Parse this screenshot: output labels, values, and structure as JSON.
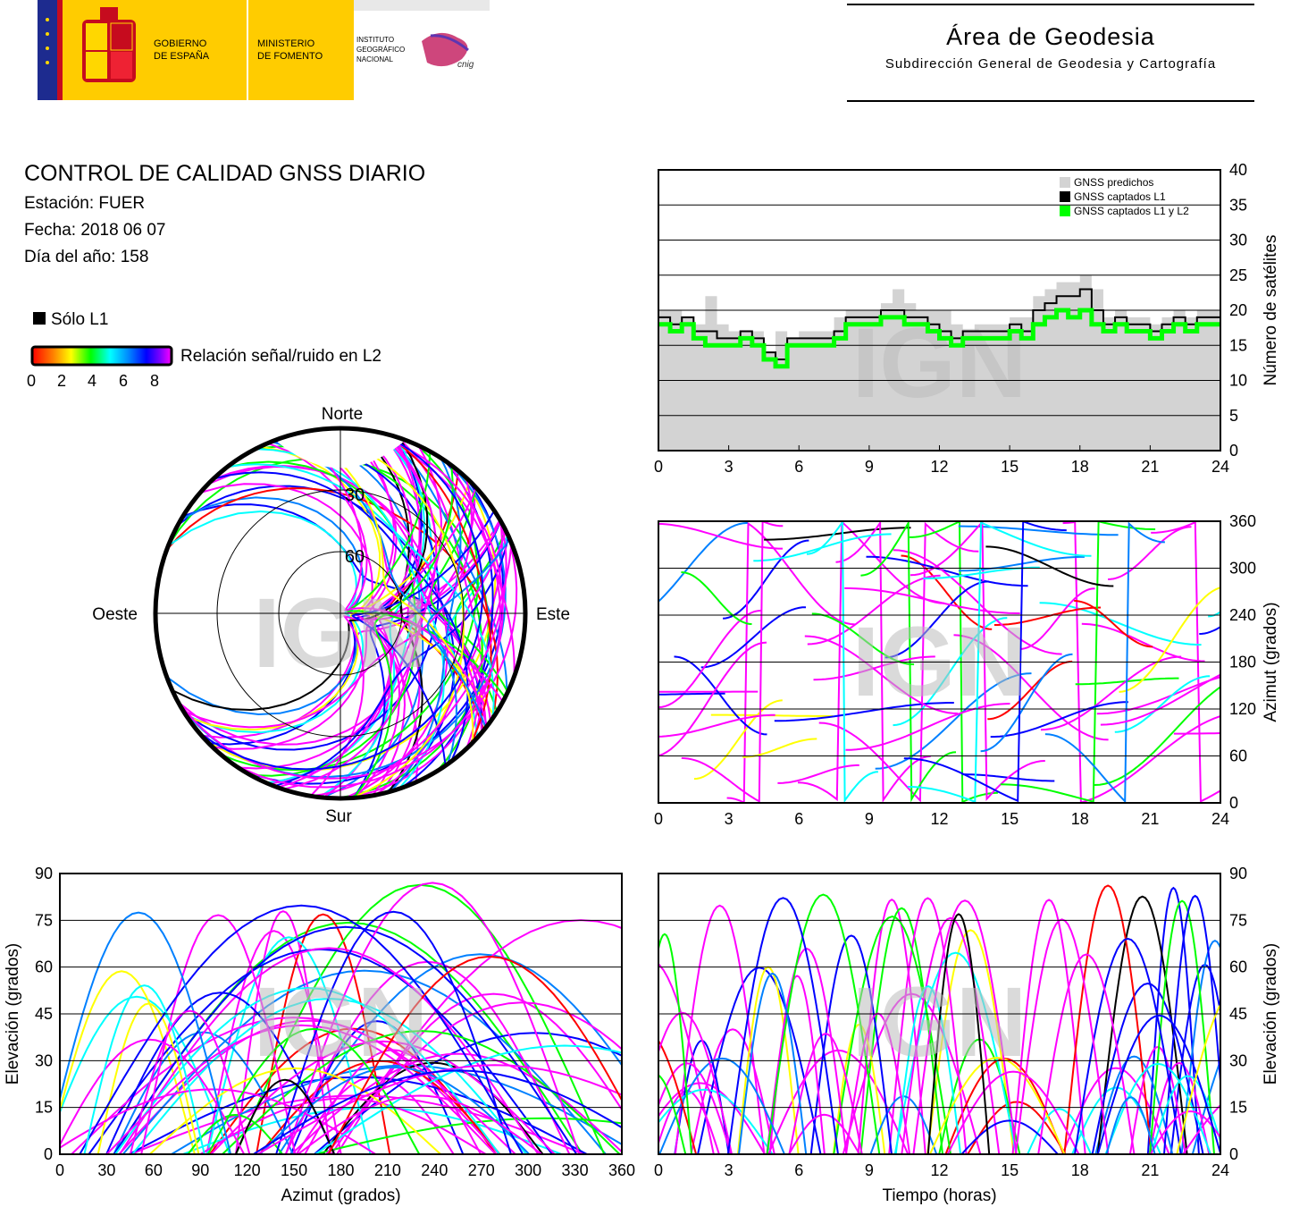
{
  "header": {
    "gob_line1": "GOBIERNO",
    "gob_line2": "DE ESPAÑA",
    "min_line1": "MINISTERIO",
    "min_line2": "DE FOMENTO",
    "ign_line1": "INSTITUTO",
    "ign_line2": "GEOGRÁFICO",
    "ign_line3": "NACIONAL",
    "cnig": "cnig",
    "area_title": "Área de Geodesia",
    "area_subtitle": "Subdirección General de Geodesia y Cartografía"
  },
  "info": {
    "title": "CONTROL DE CALIDAD GNSS DIARIO",
    "station": "Estación: FUER",
    "date": "Fecha: 2018 06 07",
    "doy": "Día del año: 158"
  },
  "legend": {
    "l1_only": "Sólo L1",
    "snr_label": "Relación señal/ruido en L2",
    "snr_ticks": [
      "0",
      "2",
      "4",
      "6",
      "8"
    ],
    "colors": {
      "snr_gradient": [
        "#000000",
        "#ff0000",
        "#ff8000",
        "#ffff00",
        "#00ff00",
        "#00ffff",
        "#0080ff",
        "#0000ff",
        "#8000ff",
        "#ff00ff"
      ],
      "predicted": "#d3d3d3",
      "l1": "#000000",
      "l1l2": "#00ff00"
    }
  },
  "watermark": "IGN",
  "skyplot": {
    "north": "Norte",
    "south": "Sur",
    "west": "Oeste",
    "east": "Este",
    "ring_labels": [
      "30",
      "60"
    ]
  },
  "chart_data": [
    {
      "id": "satellites",
      "type": "line",
      "x_ticks": [
        "0",
        "3",
        "6",
        "9",
        "12",
        "15",
        "18",
        "21",
        "24"
      ],
      "y_ticks": [
        "0",
        "5",
        "10",
        "15",
        "20",
        "25",
        "30",
        "35",
        "40"
      ],
      "xlim": [
        0,
        24
      ],
      "ylim": [
        0,
        40
      ],
      "ylabel": "Número de satélites",
      "legend_placement": "top-right",
      "series": [
        {
          "name": "GNSS predichos",
          "color": "#d3d3d3",
          "x": [
            0,
            0.5,
            1,
            1.5,
            2,
            2.5,
            3,
            3.5,
            4,
            4.5,
            5,
            5.5,
            6,
            6.5,
            7,
            7.5,
            8,
            8.5,
            9,
            9.5,
            10,
            10.5,
            11,
            11.5,
            12,
            12.5,
            13,
            13.5,
            14,
            14.5,
            15,
            15.5,
            16,
            16.5,
            17,
            17.5,
            18,
            18.5,
            19,
            19.5,
            20,
            20.5,
            21,
            21.5,
            22,
            22.5,
            23,
            23.5,
            24
          ],
          "y": [
            20,
            20,
            19,
            18,
            22,
            18,
            17,
            17,
            17,
            14,
            17,
            16,
            17,
            17,
            17,
            19,
            20,
            20,
            20,
            21,
            23,
            21,
            20,
            20,
            20,
            18,
            17,
            18,
            18,
            18,
            19,
            19,
            22,
            23,
            24,
            24,
            25,
            23,
            19,
            20,
            19,
            19,
            18,
            19,
            20,
            19,
            20,
            20,
            20
          ]
        },
        {
          "name": "GNSS captados L1",
          "color": "#000000",
          "x": [
            0,
            0.5,
            1,
            1.5,
            2,
            2.5,
            3,
            3.5,
            4,
            4.5,
            5,
            5.5,
            6,
            6.5,
            7,
            7.5,
            8,
            8.5,
            9,
            9.5,
            10,
            10.5,
            11,
            11.5,
            12,
            12.5,
            13,
            13.5,
            14,
            14.5,
            15,
            15.5,
            16,
            16.5,
            17,
            17.5,
            18,
            18.5,
            19,
            19.5,
            20,
            20.5,
            21,
            21.5,
            22,
            22.5,
            23,
            23.5,
            24
          ],
          "y": [
            19,
            18,
            19,
            17,
            17,
            16,
            16,
            17,
            16,
            14,
            13,
            16,
            16,
            16,
            16,
            17,
            19,
            19,
            19,
            20,
            20,
            19,
            19,
            18,
            17,
            16,
            17,
            17,
            17,
            17,
            18,
            17,
            20,
            21,
            22,
            22,
            23,
            20,
            18,
            19,
            18,
            18,
            17,
            18,
            19,
            18,
            19,
            19,
            19
          ]
        },
        {
          "name": "GNSS captados L1 y L2",
          "color": "#00ff00",
          "x": [
            0,
            0.5,
            1,
            1.5,
            2,
            2.5,
            3,
            3.5,
            4,
            4.5,
            5,
            5.5,
            6,
            6.5,
            7,
            7.5,
            8,
            8.5,
            9,
            9.5,
            10,
            10.5,
            11,
            11.5,
            12,
            12.5,
            13,
            13.5,
            14,
            14.5,
            15,
            15.5,
            16,
            16.5,
            17,
            17.5,
            18,
            18.5,
            19,
            19.5,
            20,
            20.5,
            21,
            21.5,
            22,
            22.5,
            23,
            23.5,
            24
          ],
          "y": [
            18,
            17,
            18,
            16,
            15,
            15,
            15,
            16,
            15,
            13,
            12,
            15,
            15,
            15,
            15,
            16,
            18,
            18,
            18,
            19,
            19,
            18,
            18,
            17,
            16,
            15,
            16,
            16,
            16,
            16,
            17,
            16,
            18,
            19,
            20,
            19,
            20,
            18,
            17,
            18,
            17,
            17,
            16,
            17,
            18,
            17,
            18,
            18,
            18
          ]
        }
      ]
    },
    {
      "id": "azimuth_vs_time",
      "type": "scatter",
      "x_ticks": [
        "0",
        "3",
        "6",
        "9",
        "12",
        "15",
        "18",
        "21",
        "24"
      ],
      "y_ticks": [
        "0",
        "60",
        "120",
        "180",
        "240",
        "300",
        "360"
      ],
      "xlim": [
        0,
        24
      ],
      "ylim": [
        0,
        360
      ],
      "ylabel": "Azimut (grados)",
      "description_tracks": "satellite azimuth tracks colored by L2 SNR"
    },
    {
      "id": "elevation_vs_azimuth",
      "type": "scatter",
      "x_ticks": [
        "0",
        "30",
        "60",
        "90",
        "120",
        "150",
        "180",
        "210",
        "240",
        "270",
        "300",
        "330",
        "360"
      ],
      "y_ticks": [
        "0",
        "15",
        "30",
        "45",
        "60",
        "75",
        "90"
      ],
      "xlim": [
        0,
        360
      ],
      "ylim": [
        0,
        90
      ],
      "xlabel": "Azimut (grados)",
      "ylabel": "Elevación (grados)"
    },
    {
      "id": "elevation_vs_time",
      "type": "scatter",
      "x_ticks": [
        "0",
        "3",
        "6",
        "9",
        "12",
        "15",
        "18",
        "21",
        "24"
      ],
      "y_ticks": [
        "0",
        "15",
        "30",
        "45",
        "60",
        "75",
        "90"
      ],
      "xlim": [
        0,
        24
      ],
      "ylim": [
        0,
        90
      ],
      "xlabel": "Tiempo (horas)",
      "ylabel": "Elevación (grados)"
    }
  ]
}
